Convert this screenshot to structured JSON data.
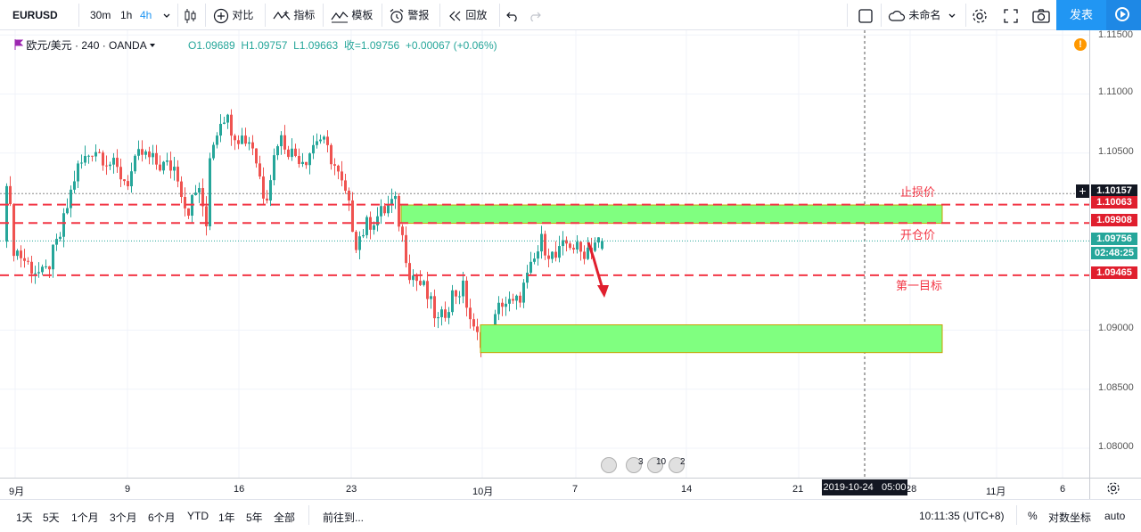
{
  "toolbar": {
    "symbol": "EURUSD",
    "intervals": [
      "30m",
      "1h",
      "4h"
    ],
    "compare": "对比",
    "indicators": "指标",
    "templates": "模板",
    "alert": "警报",
    "replay": "回放",
    "layout_name": "未命名",
    "publish": "发表"
  },
  "legend": {
    "name": "欧元/美元 · 240 · OANDA",
    "open": "O1.09689",
    "high": "H1.09757",
    "low": "L1.09663",
    "close": "收=1.09756",
    "change": "+0.00067 (+0.06%)"
  },
  "annotations": {
    "stop_loss": "止损价",
    "entry": "开仓价",
    "target1": "第一目标"
  },
  "price_axis": {
    "labels": [
      "1.11500",
      "1.11000",
      "1.10500",
      "1.09000",
      "1.08500",
      "1.08000"
    ],
    "tags": {
      "dotted_level": "1.10157",
      "stop_loss": "1.10063",
      "entry": "1.09908",
      "current": "1.09756",
      "countdown": "02:48:25",
      "target1": "1.09465"
    }
  },
  "time_axis": {
    "labels": [
      "9月",
      "9",
      "16",
      "23",
      "10月",
      "7",
      "14",
      "21",
      "28",
      "11月",
      "6"
    ],
    "crosshair_date": "2019-10-24",
    "crosshair_time": "05:00"
  },
  "events": {
    "counts": [
      "3",
      "10",
      "2"
    ]
  },
  "bottom": {
    "ranges": [
      "1天",
      "5天",
      "1个月",
      "3个月",
      "6个月",
      "YTD",
      "1年",
      "5年",
      "全部"
    ],
    "goto": "前往到...",
    "clock": "10:11:35 (UTC+8)",
    "percent": "%",
    "log": "对数坐标",
    "auto": "auto"
  },
  "colors": {
    "up": "#26a69a",
    "down": "#ef5350",
    "zone": "#80ff80",
    "level_line": "#f23645",
    "accent": "#2196f3"
  }
}
